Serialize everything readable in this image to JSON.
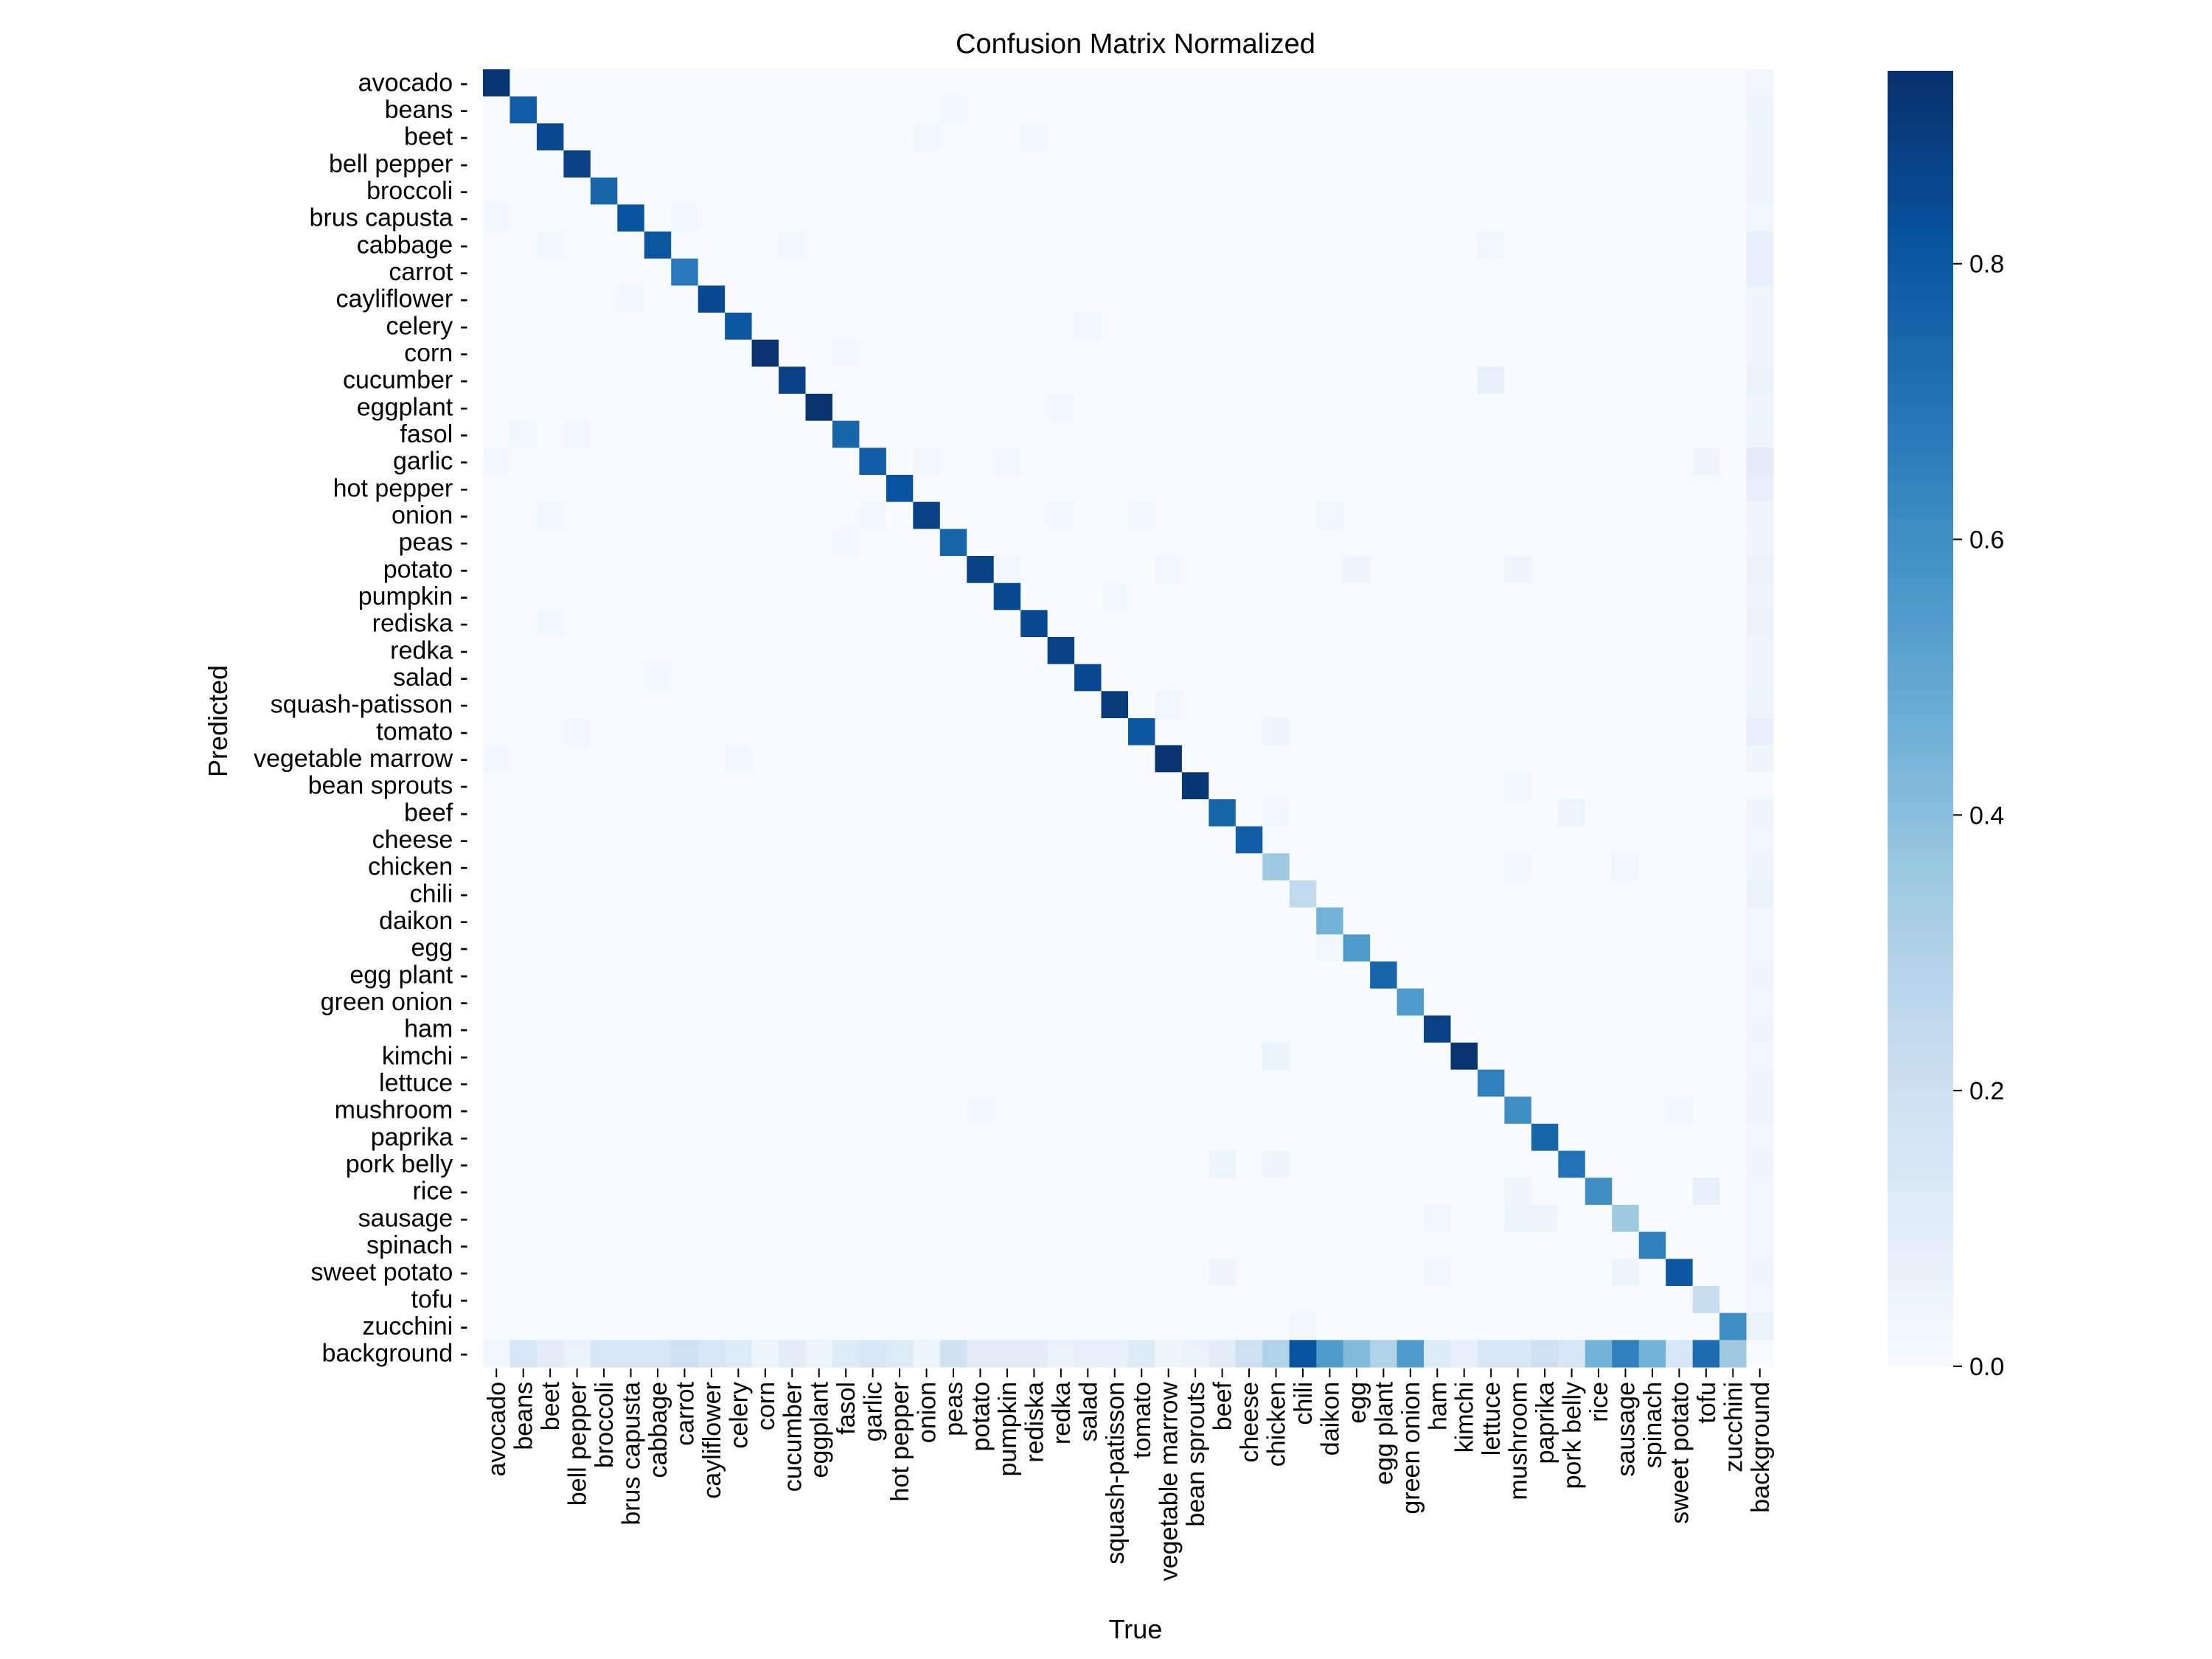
{
  "chart_data": {
    "type": "heatmap",
    "title": "Confusion Matrix Normalized",
    "xlabel": "True",
    "ylabel": "Predicted",
    "labels": [
      "avocado",
      "beans",
      "beet",
      "bell pepper",
      "broccoli",
      "brus capusta",
      "cabbage",
      "carrot",
      "cayliflower",
      "celery",
      "corn",
      "cucumber",
      "eggplant",
      "fasol",
      "garlic",
      "hot pepper",
      "onion",
      "peas",
      "potato",
      "pumpkin",
      "rediska",
      "redka",
      "salad",
      "squash-patisson",
      "tomato",
      "vegetable marrow",
      "bean sprouts",
      "beef",
      "cheese",
      "chicken",
      "chili",
      "daikon",
      "egg",
      "egg plant",
      "green onion",
      "ham",
      "kimchi",
      "lettuce",
      "mushroom",
      "paprika",
      "pork belly",
      "rice",
      "sausage",
      "spinach",
      "sweet potato",
      "tofu",
      "zucchini",
      "background"
    ],
    "value_range": [
      0.0,
      0.94
    ],
    "colorbar_ticks": [
      "0.0",
      "0.2",
      "0.4",
      "0.6",
      "0.8"
    ],
    "colormap": [
      "#f7fbff",
      "#deebf7",
      "#c6dbef",
      "#9ecae1",
      "#6baed6",
      "#4292c6",
      "#2171b5",
      "#08519c",
      "#08306b"
    ],
    "diagonal": [
      0.92,
      0.78,
      0.85,
      0.88,
      0.75,
      0.82,
      0.8,
      0.68,
      0.85,
      0.8,
      0.93,
      0.88,
      0.93,
      0.75,
      0.78,
      0.82,
      0.88,
      0.75,
      0.88,
      0.85,
      0.85,
      0.88,
      0.85,
      0.9,
      0.8,
      0.93,
      0.92,
      0.75,
      0.78,
      0.35,
      0.25,
      0.45,
      0.55,
      0.75,
      0.55,
      0.88,
      0.93,
      0.65,
      0.6,
      0.75,
      0.7,
      0.6,
      0.35,
      0.65,
      0.8,
      0.22,
      0.6,
      0.0
    ],
    "off_diagonal": [
      {
        "pred": "beans",
        "true": "peas",
        "value": 0.02
      },
      {
        "pred": "beet",
        "true": "onion",
        "value": 0.02
      },
      {
        "pred": "beet",
        "true": "rediska",
        "value": 0.03
      },
      {
        "pred": "brus capusta",
        "true": "avocado",
        "value": 0.02
      },
      {
        "pred": "brus capusta",
        "true": "carrot",
        "value": 0.02
      },
      {
        "pred": "cabbage",
        "true": "beet",
        "value": 0.02
      },
      {
        "pred": "cabbage",
        "true": "cucumber",
        "value": 0.02
      },
      {
        "pred": "cabbage",
        "true": "lettuce",
        "value": 0.03
      },
      {
        "pred": "cayliflower",
        "true": "brus capusta",
        "value": 0.02
      },
      {
        "pred": "celery",
        "true": "salad",
        "value": 0.02
      },
      {
        "pred": "corn",
        "true": "fasol",
        "value": 0.02
      },
      {
        "pred": "cucumber",
        "true": "lettuce",
        "value": 0.08
      },
      {
        "pred": "eggplant",
        "true": "redka",
        "value": 0.02
      },
      {
        "pred": "fasol",
        "true": "beans",
        "value": 0.03
      },
      {
        "pred": "fasol",
        "true": "bell pepper",
        "value": 0.02
      },
      {
        "pred": "garlic",
        "true": "avocado",
        "value": 0.02
      },
      {
        "pred": "garlic",
        "true": "onion",
        "value": 0.03
      },
      {
        "pred": "garlic",
        "true": "pumpkin",
        "value": 0.02
      },
      {
        "pred": "garlic",
        "true": "tofu",
        "value": 0.04
      },
      {
        "pred": "onion",
        "true": "beet",
        "value": 0.02
      },
      {
        "pred": "onion",
        "true": "garlic",
        "value": 0.02
      },
      {
        "pred": "onion",
        "true": "redka",
        "value": 0.02
      },
      {
        "pred": "onion",
        "true": "tomato",
        "value": 0.02
      },
      {
        "pred": "onion",
        "true": "daikon",
        "value": 0.03
      },
      {
        "pred": "peas",
        "true": "fasol",
        "value": 0.02
      },
      {
        "pred": "potato",
        "true": "pumpkin",
        "value": 0.02
      },
      {
        "pred": "potato",
        "true": "vegetable marrow",
        "value": 0.03
      },
      {
        "pred": "potato",
        "true": "egg",
        "value": 0.04
      },
      {
        "pred": "potato",
        "true": "mushroom",
        "value": 0.04
      },
      {
        "pred": "pumpkin",
        "true": "squash-patisson",
        "value": 0.02
      },
      {
        "pred": "rediska",
        "true": "beet",
        "value": 0.02
      },
      {
        "pred": "salad",
        "true": "cabbage",
        "value": 0.02
      },
      {
        "pred": "squash-patisson",
        "true": "vegetable marrow",
        "value": 0.03
      },
      {
        "pred": "tomato",
        "true": "bell pepper",
        "value": 0.02
      },
      {
        "pred": "tomato",
        "true": "chicken",
        "value": 0.04
      },
      {
        "pred": "vegetable marrow",
        "true": "avocado",
        "value": 0.02
      },
      {
        "pred": "vegetable marrow",
        "true": "celery",
        "value": 0.02
      },
      {
        "pred": "bean sprouts",
        "true": "mushroom",
        "value": 0.03
      },
      {
        "pred": "beef",
        "true": "chicken",
        "value": 0.03
      },
      {
        "pred": "beef",
        "true": "pork belly",
        "value": 0.05
      },
      {
        "pred": "chicken",
        "true": "mushroom",
        "value": 0.03
      },
      {
        "pred": "chicken",
        "true": "sausage",
        "value": 0.03
      },
      {
        "pred": "egg",
        "true": "daikon",
        "value": 0.03
      },
      {
        "pred": "kimchi",
        "true": "chicken",
        "value": 0.06
      },
      {
        "pred": "mushroom",
        "true": "potato",
        "value": 0.02
      },
      {
        "pred": "mushroom",
        "true": "sweet potato",
        "value": 0.02
      },
      {
        "pred": "pork belly",
        "true": "beef",
        "value": 0.05
      },
      {
        "pred": "pork belly",
        "true": "chicken",
        "value": 0.04
      },
      {
        "pred": "rice",
        "true": "mushroom",
        "value": 0.04
      },
      {
        "pred": "rice",
        "true": "tofu",
        "value": 0.08
      },
      {
        "pred": "sausage",
        "true": "ham",
        "value": 0.03
      },
      {
        "pred": "sausage",
        "true": "mushroom",
        "value": 0.05
      },
      {
        "pred": "sausage",
        "true": "paprika",
        "value": 0.04
      },
      {
        "pred": "sweet potato",
        "true": "beef",
        "value": 0.04
      },
      {
        "pred": "sweet potato",
        "true": "ham",
        "value": 0.03
      },
      {
        "pred": "sweet potato",
        "true": "sausage",
        "value": 0.05
      },
      {
        "pred": "zucchini",
        "true": "chili",
        "value": 0.03
      }
    ],
    "background_row": [
      0.03,
      0.15,
      0.1,
      0.06,
      0.15,
      0.15,
      0.15,
      0.2,
      0.15,
      0.12,
      0.05,
      0.1,
      0.05,
      0.12,
      0.15,
      0.12,
      0.05,
      0.18,
      0.1,
      0.1,
      0.1,
      0.06,
      0.08,
      0.08,
      0.12,
      0.04,
      0.06,
      0.1,
      0.2,
      0.3,
      0.82,
      0.55,
      0.42,
      0.3,
      0.55,
      0.12,
      0.08,
      0.15,
      0.15,
      0.2,
      0.15,
      0.45,
      0.65,
      0.45,
      0.15,
      0.72,
      0.35,
      0.0
    ],
    "background_column": [
      0.03,
      0.05,
      0.04,
      0.04,
      0.05,
      0.03,
      0.08,
      0.08,
      0.04,
      0.04,
      0.04,
      0.06,
      0.04,
      0.05,
      0.1,
      0.08,
      0.05,
      0.04,
      0.06,
      0.05,
      0.06,
      0.04,
      0.04,
      0.05,
      0.08,
      0.04,
      0.0,
      0.04,
      0.03,
      0.04,
      0.06,
      0.03,
      0.03,
      0.04,
      0.03,
      0.04,
      0.02,
      0.04,
      0.05,
      0.03,
      0.04,
      0.03,
      0.03,
      0.03,
      0.04,
      0.03,
      0.06,
      0.0
    ]
  }
}
